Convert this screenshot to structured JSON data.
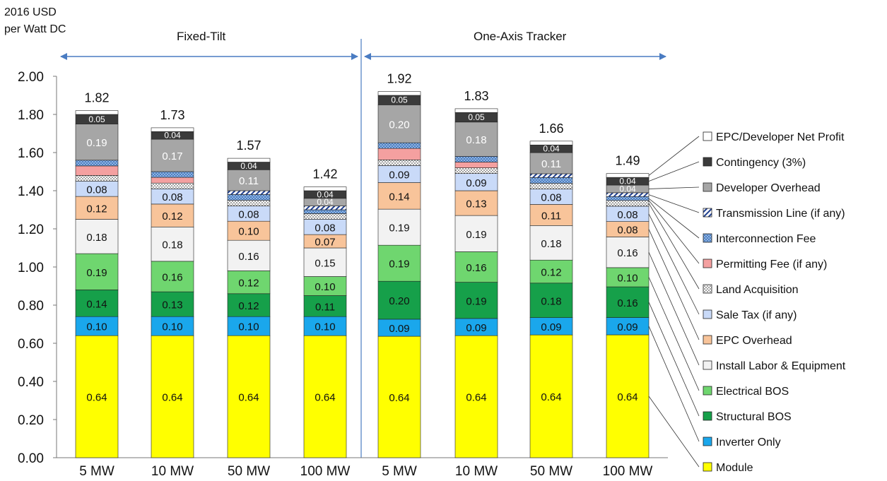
{
  "chart_data": {
    "type": "bar",
    "stacked": true,
    "ylabel_lines": [
      "2016 USD",
      "per Watt DC"
    ],
    "groups": [
      "Fixed-Tilt",
      "One-Axis Tracker"
    ],
    "categories": [
      "5 MW",
      "10 MW",
      "50 MW",
      "100 MW",
      "5 MW",
      "10 MW",
      "50 MW",
      "100 MW"
    ],
    "ylim": [
      0,
      2.0
    ],
    "yticks": [
      "0.00",
      "0.20",
      "0.40",
      "0.60",
      "0.80",
      "1.00",
      "1.20",
      "1.40",
      "1.60",
      "1.80",
      "2.00"
    ],
    "grid": false,
    "legend_position": "right",
    "totals": [
      "1.82",
      "1.73",
      "1.57",
      "1.42",
      "1.92",
      "1.83",
      "1.66",
      "1.49"
    ],
    "total_values": [
      1.82,
      1.73,
      1.57,
      1.42,
      1.92,
      1.83,
      1.66,
      1.49
    ],
    "series": [
      {
        "name": "Module",
        "color": "#ffff00",
        "pattern": "solid",
        "values": [
          0.64,
          0.64,
          0.64,
          0.64,
          0.64,
          0.64,
          0.64,
          0.64
        ],
        "labels": [
          "0.64",
          "0.64",
          "0.64",
          "0.64",
          "0.64",
          "0.64",
          "0.64",
          "0.64"
        ]
      },
      {
        "name": "Inverter Only",
        "color": "#1aa7ec",
        "pattern": "solid",
        "values": [
          0.1,
          0.1,
          0.1,
          0.1,
          0.09,
          0.09,
          0.09,
          0.09
        ],
        "labels": [
          "0.10",
          "0.10",
          "0.10",
          "0.10",
          "0.09",
          "0.09",
          "0.09",
          "0.09"
        ]
      },
      {
        "name": "Structural BOS",
        "color": "#16a04a",
        "pattern": "solid",
        "values": [
          0.14,
          0.13,
          0.12,
          0.11,
          0.2,
          0.19,
          0.18,
          0.16
        ],
        "labels": [
          "0.14",
          "0.13",
          "0.12",
          "0.11",
          "0.20",
          "0.19",
          "0.18",
          "0.16"
        ]
      },
      {
        "name": "Electrical BOS",
        "color": "#6fd66f",
        "pattern": "solid",
        "values": [
          0.19,
          0.16,
          0.12,
          0.1,
          0.19,
          0.16,
          0.12,
          0.1
        ],
        "labels": [
          "0.19",
          "0.16",
          "0.12",
          "0.10",
          "0.19",
          "0.16",
          "0.12",
          "0.10"
        ]
      },
      {
        "name": "Install Labor & Equipment",
        "color": "#f2f2f2",
        "pattern": "solid",
        "values": [
          0.18,
          0.18,
          0.16,
          0.15,
          0.19,
          0.19,
          0.18,
          0.16
        ],
        "labels": [
          "0.18",
          "0.18",
          "0.16",
          "0.15",
          "0.19",
          "0.19",
          "0.18",
          "0.16"
        ]
      },
      {
        "name": "EPC Overhead",
        "color": "#f8c49a",
        "pattern": "solid",
        "values": [
          0.12,
          0.12,
          0.1,
          0.07,
          0.14,
          0.13,
          0.11,
          0.08
        ],
        "labels": [
          "0.12",
          "0.12",
          "0.10",
          "0.07",
          "0.14",
          "0.13",
          "0.11",
          "0.08"
        ]
      },
      {
        "name": "Sale Tax (if any)",
        "color": "#c9daf8",
        "pattern": "solid",
        "values": [
          0.08,
          0.08,
          0.08,
          0.08,
          0.09,
          0.09,
          0.08,
          0.08
        ],
        "labels": [
          "0.08",
          "0.08",
          "0.08",
          "0.08",
          "0.09",
          "0.09",
          "0.08",
          "0.08"
        ]
      },
      {
        "name": "Land Acquisition",
        "color": "#ffffff",
        "pattern": "dots",
        "values": [
          0.03,
          0.03,
          0.03,
          0.03,
          0.03,
          0.03,
          0.03,
          0.03
        ],
        "labels": [
          "",
          "",
          "",
          "",
          "",
          "",
          "",
          ""
        ]
      },
      {
        "name": "Permitting Fee (if any)",
        "color": "#f4a0a0",
        "pattern": "solid",
        "values": [
          0.05,
          0.03,
          0.0,
          0.0,
          0.06,
          0.03,
          0.0,
          0.0
        ],
        "labels": [
          "",
          "",
          "",
          "",
          "",
          "",
          "",
          ""
        ]
      },
      {
        "name": "Interconnection Fee",
        "color": "#8eb4e3",
        "pattern": "check",
        "values": [
          0.03,
          0.03,
          0.03,
          0.02,
          0.03,
          0.03,
          0.03,
          0.02
        ],
        "labels": [
          "",
          "",
          "",
          "",
          "",
          "",
          "",
          ""
        ]
      },
      {
        "name": "Transmission Line (if any)",
        "color": "#ffffff",
        "pattern": "stripes",
        "values": [
          0.0,
          0.0,
          0.02,
          0.02,
          0.0,
          0.0,
          0.02,
          0.02
        ],
        "labels": [
          "",
          "",
          "",
          "",
          "",
          "",
          "",
          ""
        ]
      },
      {
        "name": "Developer Overhead",
        "color": "#a6a6a6",
        "pattern": "solid",
        "values": [
          0.19,
          0.17,
          0.11,
          0.04,
          0.2,
          0.18,
          0.11,
          0.04
        ],
        "labels": [
          "0.19",
          "0.17",
          "0.11",
          "0.04",
          "0.20",
          "0.18",
          "0.11",
          "0.04"
        ]
      },
      {
        "name": "Contingency (3%)",
        "color": "#3b3b3b",
        "pattern": "solid",
        "values": [
          0.05,
          0.04,
          0.04,
          0.04,
          0.05,
          0.05,
          0.04,
          0.04
        ],
        "labels": [
          "0.05",
          "0.04",
          "0.04",
          "0.04",
          "0.05",
          "0.05",
          "0.04",
          "0.04"
        ]
      },
      {
        "name": "EPC/Developer Net Profit",
        "color": "#ffffff",
        "pattern": "solid",
        "values": [
          0.02,
          0.02,
          0.02,
          0.02,
          0.02,
          0.02,
          0.02,
          0.02
        ],
        "labels": [
          "",
          "",
          "",
          "",
          "",
          "",
          "",
          ""
        ]
      }
    ]
  }
}
